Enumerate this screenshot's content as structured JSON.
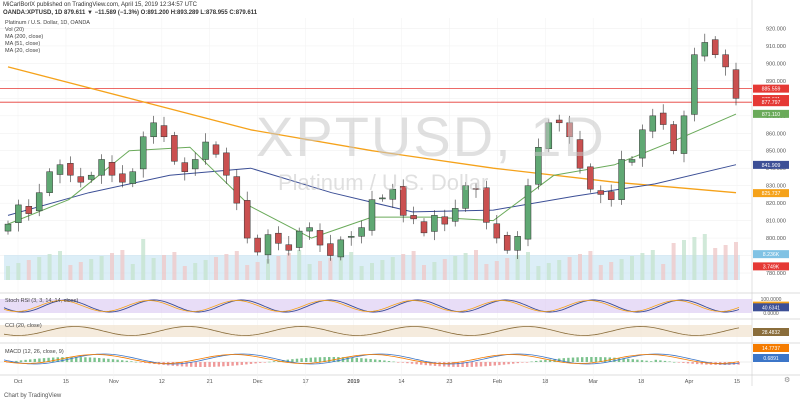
{
  "header": {
    "line1": "MiCarlBorlX published on TradingView.com, April 15, 2019 12:34:57 UTC",
    "line2": "OANDA:XPTUSD, 1D  879.611  ▼ −11.589 (−1.3%)  O:891.200  H:893.289  L:878.955  C:879.611"
  },
  "legend": {
    "title": "Platinum / U.S. Dollar, 1D, OANDA",
    "vol": "Vol (20)",
    "ma200": "MA (200, close)",
    "ma51": "MA (51, close)",
    "ma20": "MA (20, close)"
  },
  "watermark": {
    "symbol": "XPTUSD, 1D",
    "name": "Platinum / U.S. Dollar"
  },
  "panes": {
    "stoch": "Stoch RSI (3, 3, 14, 14, close)",
    "cci": "CCI (20, close)",
    "macd": "MACD (12, 26, close, 9)"
  },
  "footer": "Chart by TradingView",
  "colors": {
    "up": "#5fa873",
    "down": "#ca5050",
    "ma200": "#f5a21a",
    "ma51": "#3c4f96",
    "ma20": "#6aaa5a",
    "volume": "#bfe0f0",
    "hline": "#e53935",
    "stochBg": "#d9c7f2",
    "cciBg": "#f1e2cf"
  },
  "chart_data": [
    {
      "type": "candlestick",
      "title": "Platinum / U.S. Dollar, 1D, OANDA",
      "y_ticks": [
        920,
        910,
        900,
        890,
        880,
        870,
        860,
        850,
        840,
        830,
        820,
        810,
        800,
        790,
        780
      ],
      "ylim": [
        776,
        926
      ],
      "x_ticks": [
        "Oct",
        "15",
        "Nov",
        "12",
        "21",
        "Dec",
        "17",
        "2019",
        "14",
        "23",
        "Feb",
        "18",
        "Mar",
        "18",
        "Apr",
        "15"
      ],
      "close_path": [
        808,
        819,
        814,
        826,
        838,
        842,
        836,
        832,
        836,
        845,
        836,
        832,
        838,
        858,
        866,
        858,
        844,
        838,
        845,
        855,
        848,
        836,
        820,
        800,
        792,
        802,
        797,
        793,
        804,
        806,
        796,
        790,
        799,
        801,
        806,
        822,
        823,
        828,
        813,
        811,
        803,
        813,
        808,
        817,
        830,
        828,
        809,
        800,
        793,
        801,
        830,
        852,
        866,
        866,
        858,
        840,
        828,
        825,
        822,
        845,
        845,
        862,
        870,
        865,
        850,
        870,
        905,
        912,
        905,
        898,
        880
      ],
      "price_labels": [
        {
          "label": "885.559",
          "value": 885.559
        },
        {
          "label": "879.611",
          "value": 879.611
        },
        {
          "label": "877.797",
          "value": 877.797
        },
        {
          "label": "871.110",
          "value": 871.11
        },
        {
          "label": "841.909",
          "value": 841.909
        },
        {
          "label": "825.737",
          "value": 825.737
        },
        {
          "label": "8.236K",
          "value": 790.8
        },
        {
          "label": "3.749K",
          "value": 783.8
        }
      ],
      "hlines": [
        885.559,
        877.797
      ],
      "series": [
        {
          "name": "MA (200, close)",
          "values": [
            898,
            880,
            862,
            850,
            840,
            832,
            826
          ]
        },
        {
          "name": "MA (51, close)",
          "values": [
            813,
            826,
            836,
            840,
            826,
            815,
            816,
            824,
            831,
            842
          ]
        },
        {
          "name": "MA (20, close)",
          "values": [
            808,
            822,
            850,
            852,
            818,
            800,
            812,
            812,
            810,
            836,
            842,
            856,
            871
          ]
        }
      ]
    },
    {
      "type": "line",
      "title": "Stoch RSI (3, 3, 14, 14, close)",
      "y_ticks": [
        "100.0000",
        "50.0000",
        "0.0000"
      ],
      "ylim": [
        0,
        100
      ],
      "price_labels": [
        {
          "label": "100.0000",
          "value": 100
        },
        {
          "label": "52.7537",
          "value": 52.7537
        },
        {
          "label": "40.6341",
          "value": 40.6341
        },
        {
          "label": "0.0000",
          "value": 0
        }
      ]
    },
    {
      "type": "line",
      "title": "CCI (20, close)",
      "price_labels": [
        {
          "label": "28.4832",
          "value": 28.4832
        }
      ]
    },
    {
      "type": "histogram",
      "title": "MACD (12, 26, close, 9)",
      "price_labels": [
        {
          "label": "14.7737",
          "value": 14.7737
        },
        {
          "label": "0.6891",
          "value": 0.6891
        }
      ]
    }
  ]
}
